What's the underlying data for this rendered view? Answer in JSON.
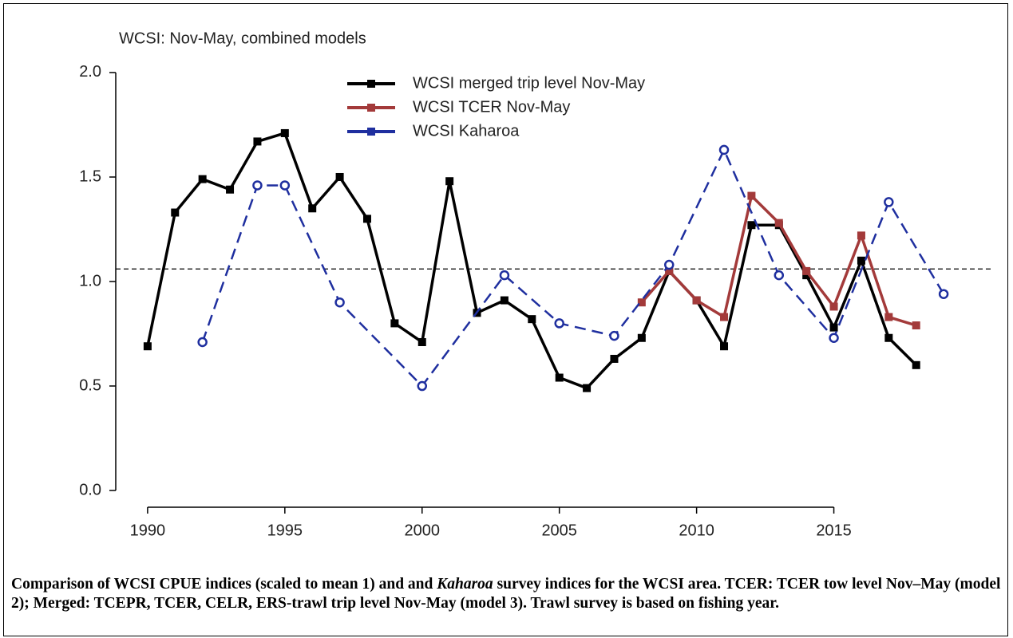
{
  "chart_data": {
    "type": "line",
    "title": "WCSI: Nov-May, combined models",
    "xlim": [
      1988.84,
      2020.16
    ],
    "ylim": [
      -0.08,
      2.08
    ],
    "xticks": [
      1990,
      1995,
      2000,
      2005,
      2010,
      2015
    ],
    "yticks": [
      {
        "value": 0,
        "label": "0.0"
      },
      0.5,
      {
        "value": 1,
        "label": "1.0"
      },
      1.5,
      {
        "value": 2,
        "label": "2.0"
      }
    ],
    "hline": 1.06,
    "legend": "top",
    "series": [
      {
        "name": "WCSI merged trip level Nov-May",
        "color": "#000000",
        "dash": false,
        "marker": "square",
        "x": [
          1990,
          1991,
          1992,
          1993,
          1994,
          1995,
          1996,
          1997,
          1998,
          1999,
          2000,
          2001,
          2002,
          2003,
          2004,
          2005,
          2006,
          2007,
          2008,
          2009,
          2010,
          2011,
          2012,
          2013,
          2014,
          2015,
          2016,
          2017,
          2018
        ],
        "values": [
          0.69,
          1.33,
          1.49,
          1.44,
          1.67,
          1.71,
          1.35,
          1.5,
          1.3,
          0.8,
          0.71,
          1.48,
          0.85,
          0.91,
          0.82,
          0.54,
          0.49,
          0.63,
          0.73,
          1.05,
          0.91,
          0.69,
          1.27,
          1.27,
          1.03,
          0.78,
          1.1,
          0.73,
          0.6
        ]
      },
      {
        "name": "WCSI TCER Nov-May",
        "color": "#a33a3a",
        "dash": false,
        "marker": "square",
        "x": [
          2008,
          2009,
          2010,
          2011,
          2012,
          2013,
          2014,
          2015,
          2016,
          2017,
          2018
        ],
        "values": [
          0.9,
          1.05,
          0.91,
          0.83,
          1.41,
          1.28,
          1.05,
          0.88,
          1.22,
          0.83,
          0.79
        ]
      },
      {
        "name": "WCSI Kaharoa",
        "color": "#1f2f9f",
        "dash": true,
        "marker": "circle",
        "x": [
          1992,
          1994,
          1995,
          1997,
          2000,
          2003,
          2005,
          2007,
          2009,
          2011,
          2013,
          2015,
          2017,
          2019
        ],
        "values": [
          0.71,
          1.46,
          1.46,
          0.9,
          0.5,
          1.03,
          0.8,
          0.74,
          1.08,
          1.63,
          1.03,
          0.73,
          1.38,
          0.94
        ]
      }
    ]
  },
  "caption": {
    "parts": [
      "Comparison of WCSI CPUE indices (scaled to mean 1) and and ",
      "Kaharoa",
      " survey indices for the WCSI area. TCER: TCER tow level Nov–May (model 2); Merged: TCEPR, TCER, CELR, ERS-trawl trip level Nov-May (model 3). Trawl survey is based on fishing year."
    ]
  }
}
